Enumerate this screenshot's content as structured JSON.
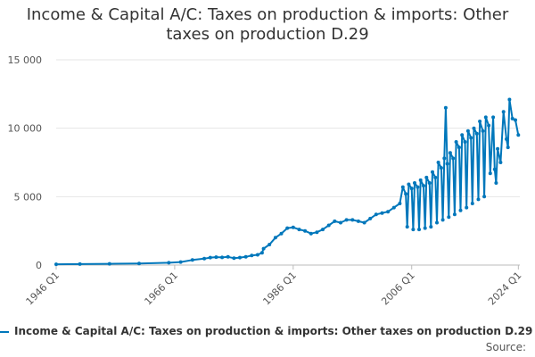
{
  "chart_data": {
    "type": "line",
    "title_lines": [
      "Income & Capital A/C: Taxes on production & imports: Other",
      "taxes on production D.29"
    ],
    "xlabel": "",
    "ylabel": "",
    "x_ticks": [
      "1946 Q1",
      "1966 Q1",
      "1986 Q1",
      "2006 Q1",
      "2024 Q1"
    ],
    "x_tick_years": [
      1946,
      1966,
      1986,
      2006,
      2024
    ],
    "y_ticks": [
      "0",
      "5 000",
      "10 000",
      "15 000"
    ],
    "ylim": [
      0,
      15000
    ],
    "xlim": [
      1946,
      2024.25
    ],
    "grid": true,
    "legend_placement": "bottom",
    "series": [
      {
        "name": "Income & Capital A/C: Taxes on production & imports: Other taxes on production D.29",
        "color": "#0077bb",
        "points": [
          [
            1946,
            60
          ],
          [
            1950,
            70
          ],
          [
            1955,
            90
          ],
          [
            1960,
            120
          ],
          [
            1965,
            170
          ],
          [
            1967,
            220
          ],
          [
            1969,
            370
          ],
          [
            1971,
            470
          ],
          [
            1972,
            550
          ],
          [
            1973,
            580
          ],
          [
            1974,
            560
          ],
          [
            1975,
            600
          ],
          [
            1976,
            500
          ],
          [
            1977,
            550
          ],
          [
            1978,
            600
          ],
          [
            1979,
            700
          ],
          [
            1980,
            750
          ],
          [
            1980.75,
            900
          ],
          [
            1981,
            1200
          ],
          [
            1982,
            1500
          ],
          [
            1983,
            2000
          ],
          [
            1984,
            2300
          ],
          [
            1985,
            2700
          ],
          [
            1986,
            2750
          ],
          [
            1987,
            2600
          ],
          [
            1988,
            2500
          ],
          [
            1989,
            2300
          ],
          [
            1990,
            2400
          ],
          [
            1991,
            2600
          ],
          [
            1992,
            2900
          ],
          [
            1993,
            3200
          ],
          [
            1994,
            3100
          ],
          [
            1995,
            3300
          ],
          [
            1996,
            3300
          ],
          [
            1997,
            3200
          ],
          [
            1998,
            3100
          ],
          [
            1999,
            3400
          ],
          [
            2000,
            3700
          ],
          [
            2001,
            3800
          ],
          [
            2002,
            3900
          ],
          [
            2003,
            4200
          ],
          [
            2004,
            4500
          ],
          [
            2004.5,
            5700
          ],
          [
            2005,
            5200
          ],
          [
            2005.25,
            2800
          ],
          [
            2005.5,
            5900
          ],
          [
            2006,
            5600
          ],
          [
            2006.25,
            2600
          ],
          [
            2006.5,
            6000
          ],
          [
            2007,
            5700
          ],
          [
            2007.25,
            2600
          ],
          [
            2007.5,
            6200
          ],
          [
            2008,
            5800
          ],
          [
            2008.25,
            2700
          ],
          [
            2008.5,
            6400
          ],
          [
            2009,
            6000
          ],
          [
            2009.25,
            2800
          ],
          [
            2009.5,
            6800
          ],
          [
            2010,
            6400
          ],
          [
            2010.25,
            3100
          ],
          [
            2010.5,
            7500
          ],
          [
            2011,
            7100
          ],
          [
            2011.25,
            3300
          ],
          [
            2011.5,
            7800
          ],
          [
            2011.75,
            11500
          ],
          [
            2012,
            7400
          ],
          [
            2012.25,
            3500
          ],
          [
            2012.5,
            8200
          ],
          [
            2013,
            7800
          ],
          [
            2013.25,
            3700
          ],
          [
            2013.5,
            9000
          ],
          [
            2014,
            8600
          ],
          [
            2014.25,
            4000
          ],
          [
            2014.5,
            9500
          ],
          [
            2015,
            9000
          ],
          [
            2015.25,
            4200
          ],
          [
            2015.5,
            9800
          ],
          [
            2016,
            9300
          ],
          [
            2016.25,
            4500
          ],
          [
            2016.5,
            10000
          ],
          [
            2017,
            9600
          ],
          [
            2017.25,
            4800
          ],
          [
            2017.5,
            10500
          ],
          [
            2018,
            9800
          ],
          [
            2018.25,
            5000
          ],
          [
            2018.5,
            10800
          ],
          [
            2019,
            10200
          ],
          [
            2019.25,
            6700
          ],
          [
            2019.75,
            10800
          ],
          [
            2020,
            7000
          ],
          [
            2020.25,
            6000
          ],
          [
            2020.5,
            8500
          ],
          [
            2021,
            7500
          ],
          [
            2021.5,
            11200
          ],
          [
            2022,
            9200
          ],
          [
            2022.25,
            8600
          ],
          [
            2022.5,
            12100
          ],
          [
            2023,
            10700
          ],
          [
            2023.5,
            10600
          ],
          [
            2024,
            9500
          ]
        ]
      }
    ]
  },
  "footer": {
    "source_label": "Source:"
  }
}
